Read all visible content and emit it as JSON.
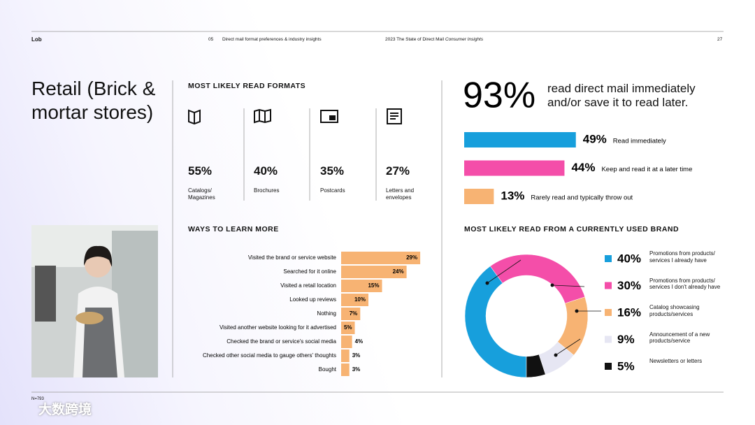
{
  "header": {
    "brand": "Lob",
    "section": "05",
    "section_title": "Direct mail format preferences & industry insights",
    "report": "2023 The State of Direct Mail",
    "report_subtitle": "Consumer Insights",
    "page": "27"
  },
  "title": "Retail (Brick & mortar stores)",
  "formats": {
    "heading": "MOST LIKELY READ FORMATS",
    "items": [
      {
        "value": "55%",
        "label": "Catalogs/ Magazines"
      },
      {
        "value": "40%",
        "label": "Brochures"
      },
      {
        "value": "35%",
        "label": "Postcards"
      },
      {
        "value": "27%",
        "label": "Letters and envelopes"
      }
    ]
  },
  "chart_data": [
    {
      "type": "hbar",
      "title": "WAYS TO LEARN MORE",
      "color": "#f7b373",
      "categories": [
        "Visited the brand or service website",
        "Searched for it online",
        "Visited a retail location",
        "Looked up reviews",
        "Nothing",
        "Visited another website looking for it advertised",
        "Checked the brand or service's social media",
        "Checked other social media to gauge others' thoughts",
        "Bought"
      ],
      "values": [
        29,
        24,
        15,
        10,
        7,
        5,
        4,
        3,
        3
      ],
      "value_labels": [
        "29%",
        "24%",
        "15%",
        "10%",
        "7%",
        "5%",
        "4%",
        "3%",
        "3%"
      ]
    },
    {
      "type": "readbar",
      "headline": 93,
      "headline_label": "93%",
      "headline_text": "read direct mail immediately and/or save it to read later.",
      "categories": [
        "Read immediately",
        "Keep and read it at a later time",
        "Rarely read and typically throw out"
      ],
      "values": [
        49,
        44,
        13
      ],
      "value_labels": [
        "49%",
        "44%",
        "13%"
      ],
      "colors": [
        "#179fdc",
        "#f44ea9",
        "#f7b373"
      ]
    },
    {
      "type": "donut",
      "title": "MOST LIKELY READ FROM A CURRENTLY USED BRAND",
      "categories": [
        "Promotions from products/ services I already have",
        "Promotions from products/ services I don't already have",
        "Catalog showcasing products/services",
        "Announcement of a new products/service",
        "Newsletters or letters"
      ],
      "values": [
        40,
        30,
        16,
        9,
        5
      ],
      "value_labels": [
        "40%",
        "30%",
        "16%",
        "9%",
        "5%"
      ],
      "colors": [
        "#179fdc",
        "#f44ea9",
        "#f7b373",
        "#e6e6f3",
        "#111111"
      ]
    }
  ],
  "footer": {
    "note": "N=793",
    "watermark": "大数跨境"
  }
}
